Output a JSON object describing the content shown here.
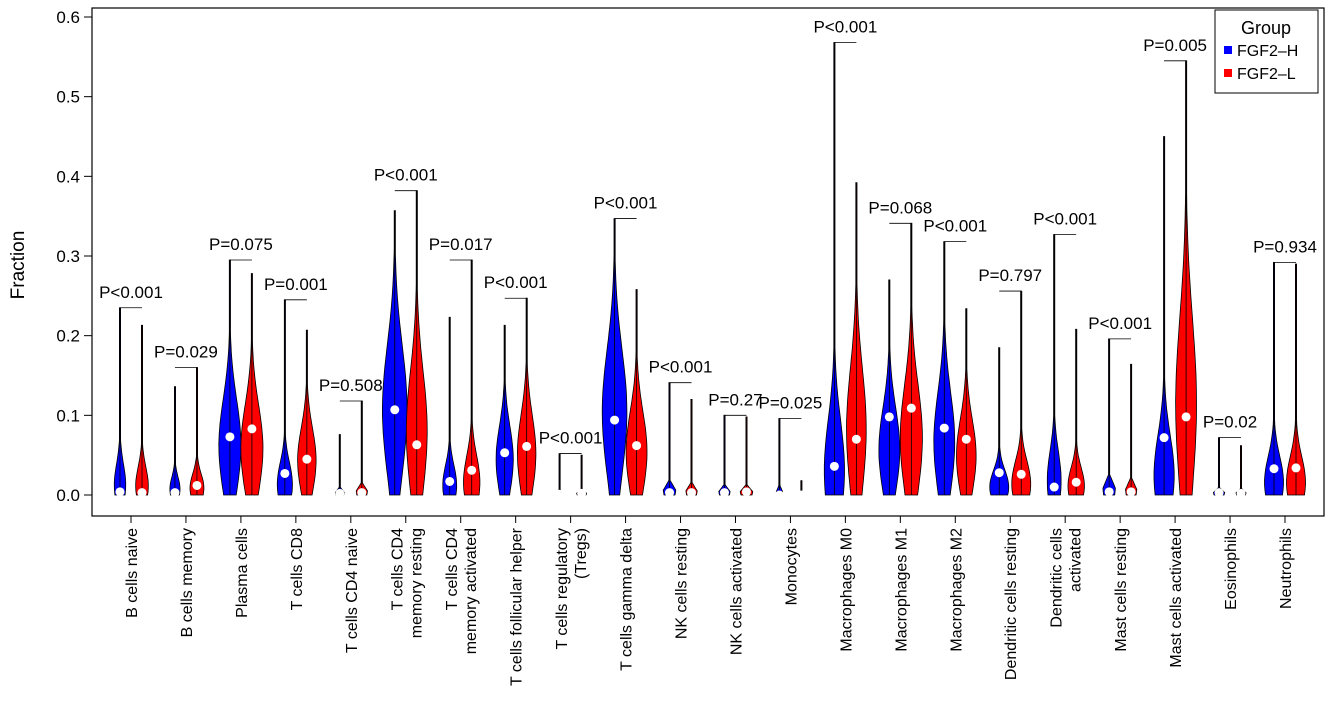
{
  "chart_data": {
    "type": "violin",
    "ylabel": "Fraction",
    "ylim": [
      0,
      0.61
    ],
    "yticks": [
      "0.0",
      "0.1",
      "0.2",
      "0.3",
      "0.4",
      "0.5",
      "0.6"
    ],
    "legend": {
      "title": "Group",
      "position": "top-right",
      "items": [
        {
          "label": "FGF2–H",
          "color": "#0000ff"
        },
        {
          "label": "FGF2–L",
          "color": "#ff0000"
        }
      ]
    },
    "categories": [
      {
        "lines": [
          "B cells naive"
        ],
        "p": "P<0.001",
        "H": {
          "max": 0.235,
          "median": 0.004,
          "w": 0.45,
          "shape": "low"
        },
        "L": {
          "max": 0.213,
          "median": 0.003,
          "w": 0.5,
          "shape": "low"
        }
      },
      {
        "lines": [
          "B cells memory"
        ],
        "p": "P=0.029",
        "H": {
          "max": 0.136,
          "median": 0.003,
          "w": 0.4,
          "shape": "low"
        },
        "L": {
          "max": 0.16,
          "median": 0.012,
          "w": 0.55,
          "shape": "low"
        }
      },
      {
        "lines": [
          "Plasma cells"
        ],
        "p": "P=0.075",
        "H": {
          "max": 0.295,
          "median": 0.073,
          "w": 0.9,
          "shape": "mid"
        },
        "L": {
          "max": 0.278,
          "median": 0.083,
          "w": 0.9,
          "shape": "mid"
        }
      },
      {
        "lines": [
          "T cells CD8"
        ],
        "p": "P=0.001",
        "H": {
          "max": 0.245,
          "median": 0.027,
          "w": 0.6,
          "shape": "low"
        },
        "L": {
          "max": 0.207,
          "median": 0.045,
          "w": 0.75,
          "shape": "mid"
        }
      },
      {
        "lines": [
          "T cells CD4 naive"
        ],
        "p": "P=0.508",
        "H": {
          "max": 0.076,
          "median": 0.002,
          "w": 0.35,
          "shape": "flat"
        },
        "L": {
          "max": 0.118,
          "median": 0.003,
          "w": 0.45,
          "shape": "flat"
        }
      },
      {
        "lines": [
          "T cells CD4",
          "memory resting"
        ],
        "p": "P<0.001",
        "H": {
          "max": 0.357,
          "median": 0.107,
          "w": 0.95,
          "shape": "high"
        },
        "L": {
          "max": 0.382,
          "median": 0.063,
          "w": 0.85,
          "shape": "mid"
        }
      },
      {
        "lines": [
          "T cells CD4",
          "memory activated"
        ],
        "p": "P=0.017",
        "H": {
          "max": 0.223,
          "median": 0.017,
          "w": 0.55,
          "shape": "low"
        },
        "L": {
          "max": 0.295,
          "median": 0.031,
          "w": 0.65,
          "shape": "low"
        }
      },
      {
        "lines": [
          "T cells follicular helper"
        ],
        "p": "P<0.001",
        "H": {
          "max": 0.213,
          "median": 0.053,
          "w": 0.7,
          "shape": "mid"
        },
        "L": {
          "max": 0.247,
          "median": 0.061,
          "w": 0.75,
          "shape": "mid"
        }
      },
      {
        "lines": [
          "T cells regulatory",
          "(Tregs)"
        ],
        "p": "P<0.001",
        "H": {
          "max": 0.052,
          "median": 0.001,
          "w": 0.3,
          "shape": "flat"
        },
        "L": {
          "max": 0.05,
          "median": 0.002,
          "w": 0.4,
          "shape": "flat"
        }
      },
      {
        "lines": [
          "T cells gamma delta"
        ],
        "p": "P<0.001",
        "H": {
          "max": 0.347,
          "median": 0.094,
          "w": 0.95,
          "shape": "high"
        },
        "L": {
          "max": 0.258,
          "median": 0.062,
          "w": 0.85,
          "shape": "mid"
        }
      },
      {
        "lines": [
          "NK cells resting"
        ],
        "p": "P<0.001",
        "H": {
          "max": 0.141,
          "median": 0.003,
          "w": 0.5,
          "shape": "flat"
        },
        "L": {
          "max": 0.12,
          "median": 0.003,
          "w": 0.45,
          "shape": "flat"
        }
      },
      {
        "lines": [
          "NK cells activated"
        ],
        "p": "P=0.27",
        "H": {
          "max": 0.1,
          "median": 0.003,
          "w": 0.45,
          "shape": "flat"
        },
        "L": {
          "max": 0.098,
          "median": 0.004,
          "w": 0.5,
          "shape": "flat"
        }
      },
      {
        "lines": [
          "Monocytes"
        ],
        "p": "P=0.025",
        "H": {
          "max": 0.096,
          "median": 0.0,
          "w": 0.25,
          "shape": "flat"
        },
        "L": {
          "max": 0.018,
          "median": 0.0,
          "w": 0.15,
          "shape": "flat"
        }
      },
      {
        "lines": [
          "Macrophages M0"
        ],
        "p": "P<0.001",
        "H": {
          "max": 0.568,
          "median": 0.036,
          "w": 0.8,
          "shape": "low"
        },
        "L": {
          "max": 0.392,
          "median": 0.07,
          "w": 0.8,
          "shape": "mid"
        }
      },
      {
        "lines": [
          "Macrophages M1"
        ],
        "p": "P=0.068",
        "H": {
          "max": 0.27,
          "median": 0.098,
          "w": 0.85,
          "shape": "mid"
        },
        "L": {
          "max": 0.341,
          "median": 0.109,
          "w": 0.9,
          "shape": "mid"
        }
      },
      {
        "lines": [
          "Macrophages M2"
        ],
        "p": "P<0.001",
        "H": {
          "max": 0.318,
          "median": 0.084,
          "w": 0.85,
          "shape": "mid"
        },
        "L": {
          "max": 0.234,
          "median": 0.07,
          "w": 0.8,
          "shape": "mid"
        }
      },
      {
        "lines": [
          "Dendritic cells resting"
        ],
        "p": "P=0.797",
        "H": {
          "max": 0.185,
          "median": 0.028,
          "w": 0.75,
          "shape": "low"
        },
        "L": {
          "max": 0.256,
          "median": 0.026,
          "w": 0.75,
          "shape": "low"
        }
      },
      {
        "lines": [
          "Dendritic cells",
          "activated"
        ],
        "p": "P<0.001",
        "H": {
          "max": 0.327,
          "median": 0.01,
          "w": 0.55,
          "shape": "low"
        },
        "L": {
          "max": 0.208,
          "median": 0.016,
          "w": 0.65,
          "shape": "low"
        }
      },
      {
        "lines": [
          "Mast cells resting"
        ],
        "p": "P<0.001",
        "H": {
          "max": 0.196,
          "median": 0.004,
          "w": 0.5,
          "shape": "flat"
        },
        "L": {
          "max": 0.164,
          "median": 0.004,
          "w": 0.45,
          "shape": "flat"
        }
      },
      {
        "lines": [
          "Mast cells activated"
        ],
        "p": "P=0.005",
        "H": {
          "max": 0.45,
          "median": 0.072,
          "w": 0.8,
          "shape": "low"
        },
        "L": {
          "max": 0.545,
          "median": 0.098,
          "w": 0.85,
          "shape": "mid"
        }
      },
      {
        "lines": [
          "Eosinophils"
        ],
        "p": "P=0.02",
        "H": {
          "max": 0.072,
          "median": 0.003,
          "w": 0.45,
          "shape": "flat"
        },
        "L": {
          "max": 0.062,
          "median": 0.002,
          "w": 0.4,
          "shape": "flat"
        }
      },
      {
        "lines": [
          "Neutrophils"
        ],
        "p": "P=0.934",
        "H": {
          "max": 0.292,
          "median": 0.033,
          "w": 0.75,
          "shape": "low"
        },
        "L": {
          "max": 0.29,
          "median": 0.034,
          "w": 0.75,
          "shape": "low"
        }
      }
    ]
  }
}
